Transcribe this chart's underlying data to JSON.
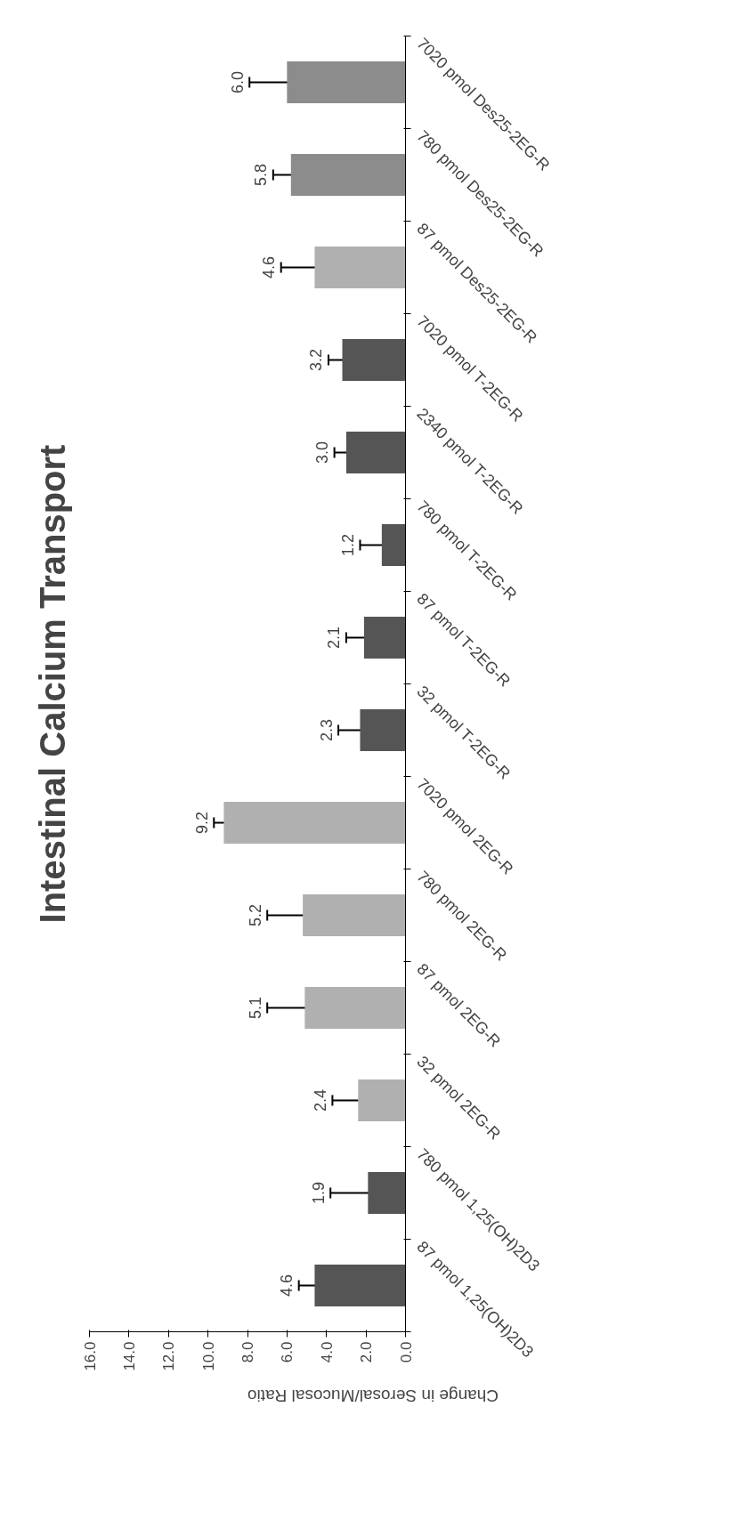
{
  "chart_data": {
    "type": "bar",
    "orientation": "horizontal",
    "title": "Intestinal Calcium Transport",
    "xlabel": "Change in Serosal/Mucosal Ratio",
    "categories": [
      "7020 pmol Des25-2EG-R",
      "780 pmol Des25-2EG-R",
      "87 pmol Des25-2EG-R",
      "7020 pmol T-2EG-R",
      "2340 pmol T-2EG-R",
      "780 pmol T-2EG-R",
      "87 pmol T-2EG-R",
      "32 pmol T-2EG-R",
      "7020 pmol 2EG-R",
      "780 pmol 2EG-R",
      "87 pmol 2EG-R",
      "32 pmol 2EG-R",
      "780 pmol 1,25(OH)2D3",
      "87 pmol 1,25(OH)2D3"
    ],
    "values": [
      6.0,
      5.8,
      4.6,
      3.2,
      3.0,
      1.2,
      2.1,
      2.3,
      9.2,
      5.2,
      5.1,
      2.4,
      1.9,
      4.6
    ],
    "errors": [
      1.9,
      0.9,
      1.7,
      0.7,
      0.6,
      1.1,
      0.9,
      1.1,
      0.5,
      1.8,
      1.9,
      1.3,
      1.9,
      0.8
    ],
    "colors": [
      "#8c8c8c",
      "#8c8c8c",
      "#b0b0b0",
      "#555555",
      "#555555",
      "#555555",
      "#555555",
      "#555555",
      "#b0b0b0",
      "#b0b0b0",
      "#b0b0b0",
      "#b0b0b0",
      "#555555",
      "#555555"
    ],
    "value_labels": [
      "6.0",
      "5.8",
      "4.6",
      "3.2",
      "3.0",
      "1.2",
      "2.1",
      "2.3",
      "9.2",
      "5.2",
      "5.1",
      "2.4",
      "1.9",
      "4.6"
    ],
    "xlim": [
      16.0,
      0.0
    ],
    "xticks": [
      {
        "value": 0,
        "label": "0.0"
      },
      {
        "value": 2,
        "label": "2.0"
      },
      {
        "value": 4,
        "label": "4.0"
      },
      {
        "value": 6,
        "label": "6.0"
      },
      {
        "value": 8,
        "label": "8.0"
      },
      {
        "value": 10,
        "label": "10.0"
      },
      {
        "value": 12,
        "label": "12.0"
      },
      {
        "value": 14,
        "label": "14.0"
      },
      {
        "value": 16,
        "label": "16.0"
      }
    ],
    "grid": false
  }
}
